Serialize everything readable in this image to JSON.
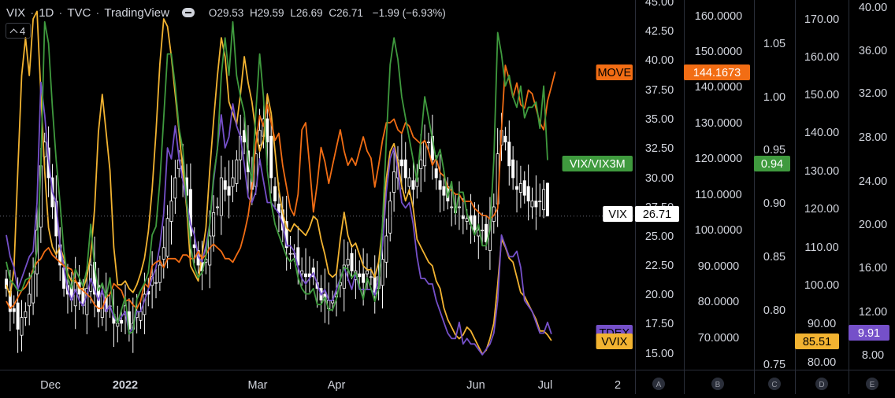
{
  "header": {
    "symbol": "VIX",
    "interval": "1D",
    "exchange": "TVC",
    "source": "TradingView",
    "sep": "·",
    "ohlc": [
      {
        "k": "O",
        "v": "29.53"
      },
      {
        "k": "H",
        "v": "29.59"
      },
      {
        "k": "L",
        "v": "26.69"
      },
      {
        "k": "C",
        "v": "26.71"
      }
    ],
    "change": "−1.99 (−6.93%)",
    "collapsed_count": "4"
  },
  "colors": {
    "VIX_up": "#ffffff",
    "VIX_down": "#ffffff",
    "VIX_VIX3M": "#3f9a3e",
    "MOVE": "#f26d14",
    "TDEX": "#7550c9",
    "VVIX": "#f2b331",
    "grid": "#2a2e39",
    "axis_text": "#d1d4dc"
  },
  "chart_data": {
    "type": "line",
    "x_tick_labels": [
      "Dec",
      "2022",
      "Mar",
      "Apr",
      "Jun",
      "Jul",
      "2"
    ],
    "series": [
      {
        "name": "VIX",
        "type": "candlestick",
        "axis": "right",
        "last_label": "26.71",
        "values": [
          20.5,
          18.5,
          18.5,
          17.0,
          18.0,
          18.5,
          20.0,
          22.0,
          25.5,
          31.0,
          33.0,
          30.0,
          27.5,
          25.0,
          22.5,
          20.5,
          20.0,
          19.5,
          21.0,
          20.0,
          19.0,
          20.5,
          22.5,
          20.0,
          18.5,
          20.0,
          18.5,
          19.0,
          17.5,
          17.5,
          17.5,
          19.0,
          17.0,
          17.5,
          18.5,
          18.5,
          20.0,
          20.0,
          21.5,
          21.0,
          22.5,
          24.0,
          26.5,
          28.0,
          30.0,
          31.5,
          30.0,
          28.5,
          25.0,
          24.0,
          22.5,
          22.0,
          23.0,
          25.0,
          27.0,
          27.5,
          30.0,
          29.0,
          28.5,
          30.0,
          31.5,
          33.5,
          33.0,
          30.5,
          29.0,
          32.0,
          34.0,
          35.0,
          33.0,
          30.0,
          28.0,
          27.0,
          25.5,
          24.0,
          23.5,
          23.5,
          22.5,
          22.0,
          21.5,
          21.5,
          21.5,
          20.5,
          19.5,
          19.5,
          19.5,
          19.5,
          20.0,
          21.0,
          22.5,
          23.0,
          22.0,
          22.0,
          21.5,
          21.0,
          22.0,
          21.5,
          20.0,
          21.5,
          23.0,
          25.0,
          28.0,
          30.5,
          31.5,
          31.0,
          30.0,
          30.0,
          29.0,
          30.0,
          31.5,
          33.0,
          33.0,
          31.5,
          30.0,
          29.0,
          28.5,
          28.0,
          27.5,
          27.0,
          27.5,
          26.5,
          26.5,
          26.0,
          25.5,
          25.5,
          25.5,
          24.5,
          26.5,
          27.5,
          32.0,
          34.0,
          33.0,
          31.0,
          30.0,
          29.0,
          29.5,
          28.5,
          28.0,
          28.0,
          27.5,
          28.0,
          29.0,
          26.71
        ],
        "last_ohlc": {
          "o": 29.53,
          "h": 29.59,
          "l": 26.69,
          "c": 26.71
        }
      },
      {
        "name": "VIX/VIX3M",
        "axis": "C",
        "last_label": "0.94",
        "values": [
          0.845,
          0.828,
          0.824,
          0.818,
          0.818,
          0.828,
          0.83,
          0.835,
          0.855,
          0.935,
          1.07,
          1.05,
          0.99,
          0.94,
          0.9,
          0.855,
          0.83,
          0.82,
          0.838,
          0.83,
          0.822,
          0.838,
          0.88,
          0.84,
          0.818,
          0.825,
          0.812,
          0.83,
          0.797,
          0.788,
          0.8,
          0.812,
          0.778,
          0.78,
          0.81,
          0.818,
          0.825,
          0.835,
          0.87,
          0.878,
          0.92,
          0.98,
          1.04,
          1.04,
          1.01,
          0.97,
          0.95,
          0.9,
          0.86,
          0.84,
          0.83,
          0.835,
          0.85,
          0.88,
          0.925,
          0.95,
          1.02,
          1.055,
          1.02,
          1.07,
          1.02,
          1.0,
          0.985,
          0.94,
          0.92,
          0.985,
          1.04,
          1.0,
          0.93,
          0.9,
          0.88,
          0.87,
          0.86,
          0.85,
          0.845,
          0.848,
          0.83,
          0.82,
          0.815,
          0.815,
          0.82,
          0.805,
          0.805,
          0.812,
          0.8,
          0.8,
          0.81,
          0.828,
          0.84,
          0.838,
          0.83,
          0.835,
          0.822,
          0.81,
          0.83,
          0.82,
          0.808,
          0.82,
          0.88,
          0.96,
          1.03,
          1.055,
          1.035,
          1.0,
          0.98,
          0.96,
          0.94,
          0.92,
          0.96,
          1.0,
          0.98,
          0.96,
          0.94,
          0.95,
          0.93,
          0.905,
          0.92,
          0.89,
          0.91,
          0.91,
          0.89,
          0.88,
          0.87,
          0.88,
          0.86,
          0.86,
          0.875,
          0.94,
          1.06,
          1.04,
          1.01,
          1.02,
          1.0,
          0.99,
          1.01,
          0.98,
          0.99,
          0.99,
          0.995,
          0.97,
          1.01,
          0.94
        ]
      },
      {
        "name": "MOVE",
        "axis": "B",
        "last_label": "144.1673",
        "values": [
          80.0,
          78.0,
          79.0,
          81.0,
          83.0,
          84.0,
          86.0,
          89.0,
          91.0,
          92.0,
          94.0,
          95.0,
          93.0,
          92.0,
          91.0,
          90.0,
          89.5,
          89.0,
          86.0,
          84.0,
          83.0,
          82.0,
          81.0,
          79.0,
          78.0,
          78.0,
          81.0,
          82.0,
          85.0,
          84.0,
          83.0,
          80.0,
          80.5,
          79.0,
          78.0,
          80.0,
          85.0,
          84.0,
          90.0,
          91.0,
          91.5,
          89.5,
          92.0,
          92.0,
          92.0,
          91.0,
          93.0,
          93.0,
          92.0,
          92.0,
          94.0,
          92.0,
          93.0,
          95.0,
          96.0,
          95.0,
          94.0,
          92.0,
          92.0,
          91.0,
          93.0,
          95.0,
          99.0,
          104.0,
          112.0,
          124.0,
          132.0,
          129.0,
          135.0,
          130.0,
          125.0,
          127.0,
          118.0,
          112.0,
          106.0,
          104.0,
          110.0,
          128.0,
          130.0,
          118.0,
          105.0,
          113.0,
          123.0,
          119.0,
          113.0,
          118.0,
          123.0,
          128.0,
          122.0,
          118.0,
          120.0,
          118.0,
          122.0,
          126.0,
          122.0,
          120.0,
          112.0,
          118.0,
          125.0,
          130.0,
          130.0,
          131.0,
          128.0,
          127.0,
          130.0,
          129.0,
          126.0,
          125.0,
          124.0,
          125.0,
          122.0,
          118.0,
          120.0,
          116.0,
          115.0,
          112.0,
          111.0,
          110.0,
          110.0,
          108.0,
          108.0,
          108.0,
          106.0,
          105.0,
          104.0,
          104.0,
          103.0,
          104.0,
          106.0,
          128.0,
          146.0,
          142.0,
          137.0,
          141.0,
          135.0,
          134.0,
          139.0,
          138.0,
          134.0,
          130.0,
          128.0,
          136.0,
          140.0,
          144.1673
        ]
      },
      {
        "name": "TDEX",
        "axis": "E",
        "last_label": "9.91",
        "values": [
          19.0,
          17.0,
          16.0,
          14.0,
          15.0,
          16.0,
          17.0,
          17.5,
          22.0,
          33.0,
          30.0,
          26.0,
          23.0,
          22.0,
          18.0,
          16.0,
          14.0,
          13.0,
          14.0,
          13.0,
          12.5,
          13.5,
          15.0,
          14.0,
          13.0,
          14.0,
          12.0,
          12.5,
          11.5,
          11.0,
          11.5,
          12.0,
          10.0,
          10.5,
          12.0,
          12.0,
          13.0,
          14.0,
          15.0,
          16.0,
          18.0,
          21.0,
          27.0,
          26.0,
          29.0,
          26.0,
          24.0,
          22.0,
          20.0,
          19.0,
          17.0,
          16.5,
          18.0,
          20.0,
          24.0,
          27.0,
          30.0,
          27.0,
          28.0,
          31.0,
          29.0,
          28.0,
          25.5,
          22.5,
          22.0,
          23.0,
          26.0,
          24.0,
          22.0,
          22.0,
          21.5,
          21.0,
          20.0,
          18.0,
          18.0,
          17.5,
          16.0,
          15.0,
          14.5,
          15.0,
          15.5,
          14.5,
          13.5,
          14.0,
          13.0,
          13.0,
          14.0,
          15.0,
          16.0,
          15.0,
          14.0,
          15.5,
          14.0,
          14.0,
          14.0,
          14.0,
          13.5,
          15.0,
          18.0,
          23.0,
          26.0,
          27.0,
          25.0,
          22.0,
          21.5,
          22.0,
          20.0,
          17.0,
          15.0,
          15.0,
          14.5,
          14.5,
          13.0,
          12.0,
          11.0,
          10.0,
          9.5,
          9.5,
          11.0,
          9.0,
          9.5,
          9.0,
          9.0,
          8.5,
          8.0,
          8.5,
          9.0,
          10.0,
          13.0,
          19.0,
          18.0,
          17.0,
          17.0,
          17.5,
          16.0,
          13.0,
          12.5,
          12.0,
          11.0,
          10.0,
          10.0,
          11.0,
          9.91
        ]
      },
      {
        "name": "VVIX",
        "axis": "D",
        "last_label": "85.51",
        "values": [
          100.0,
          97.0,
          104.0,
          130.0,
          155.0,
          165.0,
          155.0,
          170.0,
          172.0,
          150.0,
          130.0,
          115.0,
          110.0,
          108.0,
          110.0,
          107.0,
          103.0,
          101.0,
          101.0,
          99.0,
          99.0,
          102.0,
          108.0,
          120.0,
          140.0,
          150.0,
          140.0,
          130.0,
          110.0,
          100.0,
          100.0,
          101.0,
          99.0,
          98.0,
          100.0,
          103.0,
          107.0,
          114.0,
          125.0,
          140.0,
          158.0,
          170.0,
          168.0,
          160.0,
          150.0,
          140.0,
          130.0,
          120.0,
          105.0,
          103.0,
          101.0,
          108.0,
          115.0,
          130.0,
          143.0,
          155.0,
          165.0,
          160.0,
          148.0,
          145.0,
          142.0,
          150.0,
          160.0,
          153.0,
          148.0,
          140.0,
          135.0,
          138.0,
          150.0,
          145.0,
          135.0,
          125.0,
          119.0,
          115.0,
          114.0,
          116.0,
          115.0,
          114.0,
          113.0,
          115.0,
          118.0,
          117.0,
          112.0,
          108.0,
          103.0,
          102.0,
          103.0,
          112.0,
          119.0,
          113.0,
          110.0,
          111.0,
          108.0,
          105.0,
          104.0,
          104.0,
          102.0,
          106.0,
          115.0,
          128.0,
          135.0,
          137.0,
          132.0,
          126.0,
          122.0,
          125.0,
          120.0,
          112.0,
          110.0,
          108.0,
          106.0,
          105.0,
          101.0,
          99.0,
          94.0,
          91.0,
          89.0,
          87.0,
          86.0,
          87.0,
          89.0,
          88.0,
          86.0,
          84.0,
          82.0,
          83.0,
          86.0,
          90.0,
          100.0,
          112.0,
          110.0,
          107.0,
          106.0,
          102.0,
          98.0,
          97.0,
          95.0,
          93.0,
          91.0,
          88.0,
          88.0,
          87.0,
          85.51
        ]
      }
    ],
    "axes": {
      "right": {
        "range": [
          15.0,
          45.0
        ],
        "ticks": [
          "15.00",
          "17.50",
          "20.00",
          "22.50",
          "25.00",
          "27.50",
          "30.00",
          "32.50",
          "35.00",
          "37.50",
          "40.00",
          "42.50",
          "45.00"
        ]
      },
      "B": {
        "range": [
          61.0,
          180.0
        ],
        "ticks": [
          "70.0000",
          "80.0000",
          "90.0000",
          "100.0000",
          "110.0000",
          "120.0000",
          "130.0000",
          "140.0000",
          "150.0000",
          "160.0000"
        ]
      },
      "C": {
        "range": [
          0.75,
          1.15
        ],
        "ticks": [
          "0.75",
          "0.80",
          "0.85",
          "0.90",
          "0.95",
          "1.00",
          "1.05"
        ]
      },
      "D": {
        "range": [
          75.0,
          185.0
        ],
        "ticks": [
          "80.00",
          "90.00",
          "100.00",
          "110.00",
          "120.00",
          "130.00",
          "140.00",
          "150.00",
          "160.00",
          "170.00"
        ]
      },
      "E": {
        "range": [
          6.0,
          41.0
        ],
        "ticks": [
          "8.00",
          "12.00",
          "16.00",
          "20.00",
          "24.00",
          "28.00",
          "32.00",
          "36.00",
          "40.00"
        ]
      }
    },
    "axis_letters": [
      "A",
      "B",
      "C",
      "D",
      "E"
    ],
    "legend": "in-chart labels at right edge"
  }
}
